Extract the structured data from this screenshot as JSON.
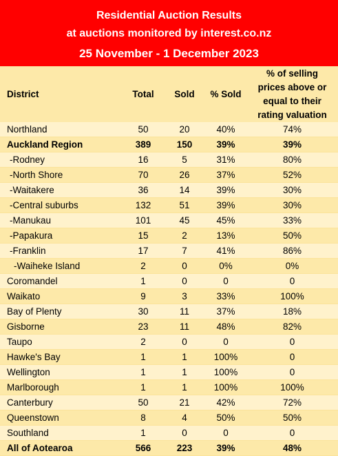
{
  "header": {
    "title": "Residential Auction Results",
    "subtitle": "at auctions monitored by interest.co.nz",
    "date_range": "25 November - 1 December 2023"
  },
  "columns": {
    "district": "District",
    "total": "Total",
    "sold": "Sold",
    "pct_sold": "% Sold",
    "rating_line1": "% of selling",
    "rating_line2": "prices above or",
    "rating_line3": "equal to their",
    "rating_line4": "rating valuation"
  },
  "rows": [
    {
      "district": "Northland",
      "total": "50",
      "sold": "20",
      "pct_sold": "40%",
      "rating": "74%"
    },
    {
      "district": "Auckland Region",
      "total": "389",
      "sold": "150",
      "pct_sold": "39%",
      "rating": "39%"
    },
    {
      "district": "-Rodney",
      "total": "16",
      "sold": "5",
      "pct_sold": "31%",
      "rating": "80%"
    },
    {
      "district": "-North Shore",
      "total": "70",
      "sold": "26",
      "pct_sold": "37%",
      "rating": "52%"
    },
    {
      "district": "-Waitakere",
      "total": "36",
      "sold": "14",
      "pct_sold": "39%",
      "rating": "30%"
    },
    {
      "district": "-Central suburbs",
      "total": "132",
      "sold": "51",
      "pct_sold": "39%",
      "rating": "30%"
    },
    {
      "district": "-Manukau",
      "total": "101",
      "sold": "45",
      "pct_sold": "45%",
      "rating": "33%"
    },
    {
      "district": "-Papakura",
      "total": "15",
      "sold": "2",
      "pct_sold": "13%",
      "rating": "50%"
    },
    {
      "district": "-Franklin",
      "total": "17",
      "sold": "7",
      "pct_sold": "41%",
      "rating": "86%"
    },
    {
      "district": "-Waiheke Island",
      "total": "2",
      "sold": "0",
      "pct_sold": "0%",
      "rating": "0%"
    },
    {
      "district": "Coromandel",
      "total": "1",
      "sold": "0",
      "pct_sold": "0",
      "rating": "0"
    },
    {
      "district": "Waikato",
      "total": "9",
      "sold": "3",
      "pct_sold": "33%",
      "rating": "100%"
    },
    {
      "district": "Bay of Plenty",
      "total": "30",
      "sold": "11",
      "pct_sold": "37%",
      "rating": "18%"
    },
    {
      "district": "Gisborne",
      "total": "23",
      "sold": "11",
      "pct_sold": "48%",
      "rating": "82%"
    },
    {
      "district": "Taupo",
      "total": "2",
      "sold": "0",
      "pct_sold": "0",
      "rating": "0"
    },
    {
      "district": "Hawke's Bay",
      "total": "1",
      "sold": "1",
      "pct_sold": "100%",
      "rating": "0"
    },
    {
      "district": "Wellington",
      "total": "1",
      "sold": "1",
      "pct_sold": "100%",
      "rating": "0"
    },
    {
      "district": "Marlborough",
      "total": "1",
      "sold": "1",
      "pct_sold": "100%",
      "rating": "100%"
    },
    {
      "district": "Canterbury",
      "total": "50",
      "sold": "21",
      "pct_sold": "42%",
      "rating": "72%"
    },
    {
      "district": "Queenstown",
      "total": "8",
      "sold": "4",
      "pct_sold": "50%",
      "rating": "50%"
    },
    {
      "district": "Southland",
      "total": "1",
      "sold": "0",
      "pct_sold": "0",
      "rating": "0"
    },
    {
      "district": "All of Aotearoa",
      "total": "566",
      "sold": "223",
      "pct_sold": "39%",
      "rating": "48%"
    }
  ],
  "colors": {
    "header_bg": "#ff0000",
    "header_text": "#ffffff",
    "table_bg": "#fde9a9",
    "row_alt_bg": "#fff2cc"
  }
}
